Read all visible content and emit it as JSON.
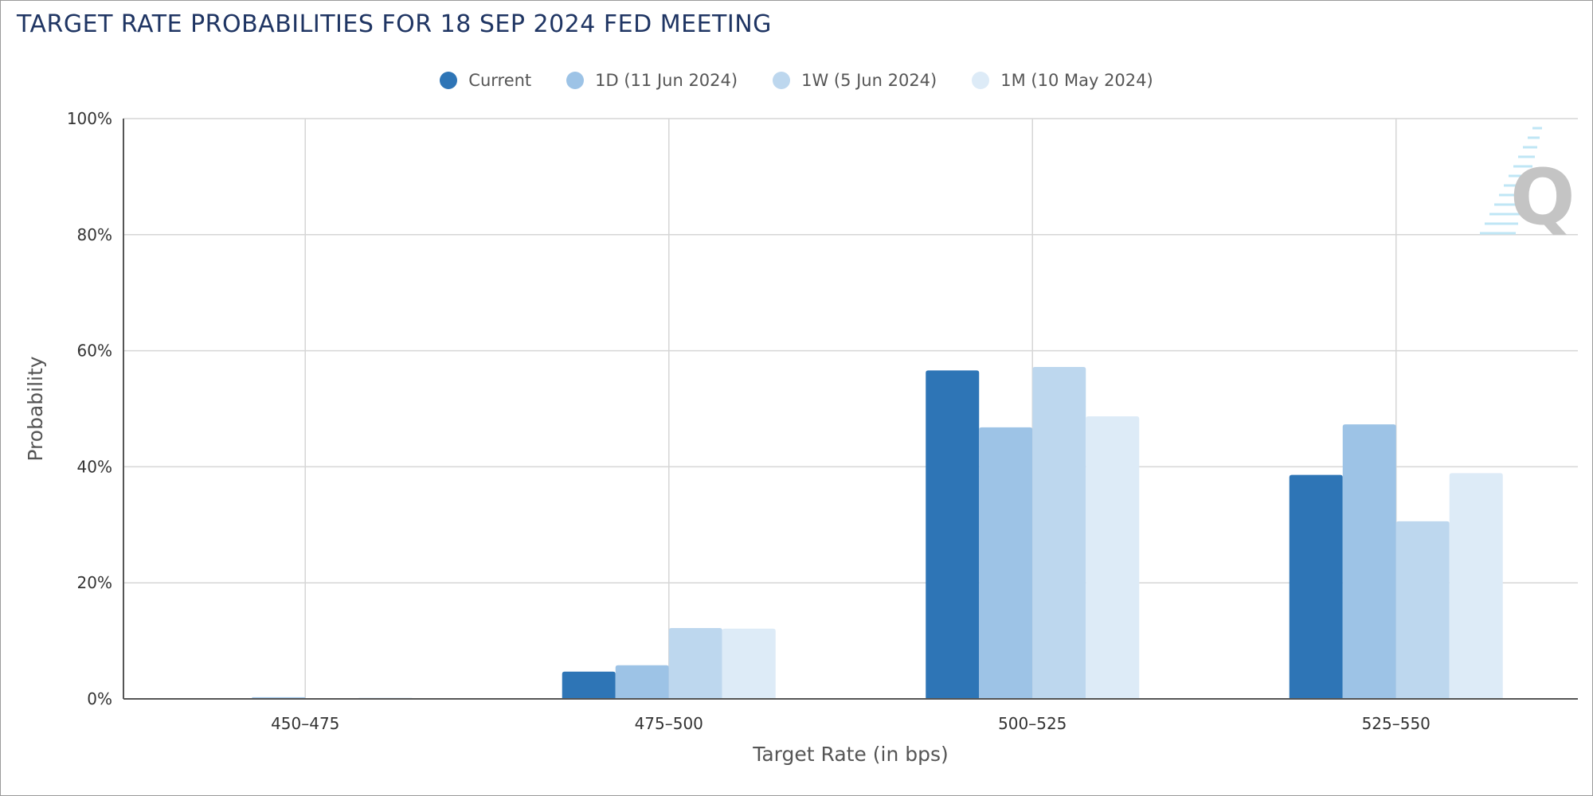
{
  "title": "TARGET RATE PROBABILITIES FOR 18 SEP 2024 FED MEETING",
  "legend": [
    {
      "label": "Current",
      "color": "#2e75b6"
    },
    {
      "label": "1D (11 Jun 2024)",
      "color": "#9dc3e6"
    },
    {
      "label": "1W (5 Jun 2024)",
      "color": "#bdd7ee"
    },
    {
      "label": "1M (10 May 2024)",
      "color": "#ddebf7"
    }
  ],
  "watermark": {
    "letter": "Q",
    "icon": "quikstrike-q-logo-icon"
  },
  "chart_data": {
    "type": "bar",
    "title": "TARGET RATE PROBABILITIES FOR 18 SEP 2024 FED MEETING",
    "xlabel": "Target Rate (in bps)",
    "ylabel": "Probability",
    "categories": [
      "450–475",
      "475–500",
      "500–525",
      "525–550"
    ],
    "ylim": [
      0,
      100
    ],
    "yticks": [
      0,
      20,
      40,
      60,
      80,
      100
    ],
    "ytick_labels": [
      "0%",
      "20%",
      "40%",
      "60%",
      "80%",
      "100%"
    ],
    "grid": true,
    "legend_position": "top-center",
    "series": [
      {
        "name": "Current",
        "color": "#2e75b6",
        "values": [
          0.0,
          4.7,
          56.6,
          38.6
        ]
      },
      {
        "name": "1D (11 Jun 2024)",
        "color": "#9dc3e6",
        "values": [
          0.3,
          5.8,
          46.8,
          47.3
        ]
      },
      {
        "name": "1W (5 Jun 2024)",
        "color": "#bdd7ee",
        "values": [
          0.0,
          12.2,
          57.2,
          30.6
        ]
      },
      {
        "name": "1M (10 May 2024)",
        "color": "#ddebf7",
        "values": [
          0.2,
          12.1,
          48.7,
          38.9
        ]
      }
    ]
  }
}
